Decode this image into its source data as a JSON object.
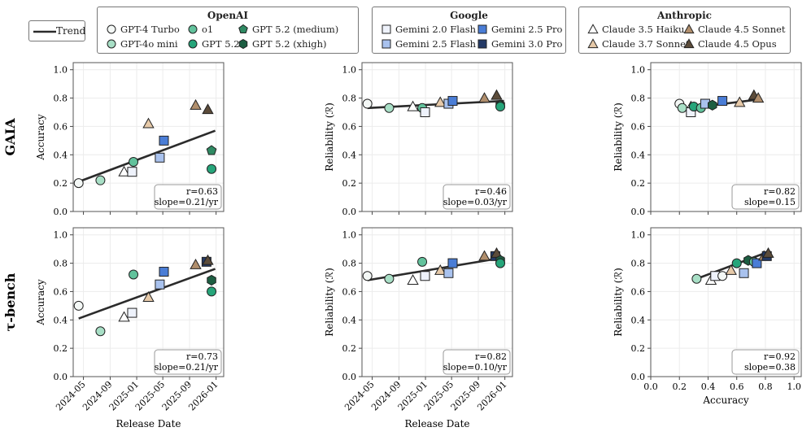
{
  "legend": {
    "trend_label": "Trend",
    "groups": [
      {
        "title": "OpenAI",
        "items": [
          {
            "label": "GPT-4 Turbo",
            "model": "gpt4turbo"
          },
          {
            "label": "o1",
            "model": "o1"
          },
          {
            "label": "GPT 5.2 (medium)",
            "model": "gpt52medium"
          },
          {
            "label": "GPT-4o mini",
            "model": "gpt4omini"
          },
          {
            "label": "GPT 5.2",
            "model": "gpt52"
          },
          {
            "label": "GPT 5.2 (xhigh)",
            "model": "gpt52xhigh"
          }
        ]
      },
      {
        "title": "Google",
        "items": [
          {
            "label": "Gemini 2.0 Flash",
            "model": "gem20flash"
          },
          {
            "label": "Gemini 2.5 Pro",
            "model": "gem25pro"
          },
          {
            "label": "Gemini 2.5 Flash",
            "model": "gem25flash"
          },
          {
            "label": "Gemini 3.0 Pro",
            "model": "gem30pro"
          }
        ]
      },
      {
        "title": "Anthropic",
        "items": [
          {
            "label": "Claude 3.5 Haiku",
            "model": "c35haiku"
          },
          {
            "label": "Claude 4.5 Sonnet",
            "model": "c45sonnet"
          },
          {
            "label": "Claude 3.7 Sonnet",
            "model": "c37sonnet"
          },
          {
            "label": "Claude 4.5 Opus",
            "model": "c45opus"
          }
        ]
      }
    ]
  },
  "models": {
    "gpt4turbo": {
      "shape": "circle",
      "color": "#f4f8f6"
    },
    "gpt4omini": {
      "shape": "circle",
      "color": "#a8dfc6"
    },
    "o1": {
      "shape": "circle",
      "color": "#62c29c"
    },
    "gpt52": {
      "shape": "circle",
      "color": "#26a57a"
    },
    "gpt52medium": {
      "shape": "pentagon",
      "color": "#2f8a63"
    },
    "gpt52xhigh": {
      "shape": "hexagon",
      "color": "#1d5e42"
    },
    "gem20flash": {
      "shape": "square",
      "color": "#eef2fb"
    },
    "gem25flash": {
      "shape": "square",
      "color": "#a9c2ee"
    },
    "gem25pro": {
      "shape": "square",
      "color": "#4a7dd6"
    },
    "gem30pro": {
      "shape": "square",
      "color": "#243a66"
    },
    "c35haiku": {
      "shape": "triangle",
      "color": "#ffffff"
    },
    "c37sonnet": {
      "shape": "triangle",
      "color": "#e6c9a8"
    },
    "c45sonnet": {
      "shape": "triangle",
      "color": "#b08e6c"
    },
    "c45opus": {
      "shape": "triangle",
      "color": "#5c4c3a"
    }
  },
  "row_labels": [
    "GAIA",
    "τ-bench"
  ],
  "chart_data": [
    {
      "id": "gaia-date-acc",
      "type": "scatter",
      "row": 0,
      "col": 0,
      "xlabel": "",
      "ylabel": "Accuracy",
      "xaxis": "date",
      "xlim": [
        "2024-03-15",
        "2026-02-05"
      ],
      "ylim": [
        0,
        1.05
      ],
      "xticks": [
        "2024-05",
        "2024-09",
        "2025-01",
        "2025-05",
        "2025-09",
        "2026-01"
      ],
      "yticks": [
        "0.0",
        "0.2",
        "0.4",
        "0.6",
        "0.8",
        "1.0"
      ],
      "show_xticklabels": false,
      "trend": {
        "x": [
          "2024-04-09",
          "2025-12-28"
        ],
        "y": [
          0.21,
          0.57
        ]
      },
      "annotation": [
        "r=0.63",
        "slope=0.21/yr"
      ],
      "points": [
        {
          "model": "gpt4turbo",
          "x": "2024-04-09",
          "y": 0.2
        },
        {
          "model": "gpt4omini",
          "x": "2024-07-18",
          "y": 0.22
        },
        {
          "model": "c35haiku",
          "x": "2024-11-04",
          "y": 0.28
        },
        {
          "model": "gem20flash",
          "x": "2024-12-11",
          "y": 0.28
        },
        {
          "model": "o1",
          "x": "2024-12-17",
          "y": 0.35
        },
        {
          "model": "c37sonnet",
          "x": "2025-02-24",
          "y": 0.62
        },
        {
          "model": "gem25flash",
          "x": "2025-04-17",
          "y": 0.38
        },
        {
          "model": "gem25pro",
          "x": "2025-05-06",
          "y": 0.5
        },
        {
          "model": "c45sonnet",
          "x": "2025-09-29",
          "y": 0.75
        },
        {
          "model": "c45opus",
          "x": "2025-11-24",
          "y": 0.72
        },
        {
          "model": "gpt52medium",
          "x": "2025-12-11",
          "y": 0.43
        },
        {
          "model": "gpt52",
          "x": "2025-12-11",
          "y": 0.3
        }
      ]
    },
    {
      "id": "gaia-date-rel",
      "type": "scatter",
      "row": 0,
      "col": 1,
      "xlabel": "",
      "ylabel": "Reliability (ℛ)",
      "xaxis": "date",
      "xlim": [
        "2024-03-15",
        "2026-02-05"
      ],
      "ylim": [
        0,
        1.05
      ],
      "xticks": [
        "2024-05",
        "2024-09",
        "2025-01",
        "2025-05",
        "2025-09",
        "2026-01"
      ],
      "yticks": [
        "0.0",
        "0.2",
        "0.4",
        "0.6",
        "0.8",
        "1.0"
      ],
      "show_xticklabels": false,
      "trend": {
        "x": [
          "2024-04-09",
          "2025-12-28"
        ],
        "y": [
          0.73,
          0.78
        ]
      },
      "annotation": [
        "r=0.46",
        "slope=0.03/yr"
      ],
      "points": [
        {
          "model": "gpt4turbo",
          "x": "2024-04-09",
          "y": 0.76
        },
        {
          "model": "gpt4omini",
          "x": "2024-07-18",
          "y": 0.73
        },
        {
          "model": "c35haiku",
          "x": "2024-11-04",
          "y": 0.74
        },
        {
          "model": "o1",
          "x": "2024-12-17",
          "y": 0.73
        },
        {
          "model": "gem20flash",
          "x": "2024-12-30",
          "y": 0.7
        },
        {
          "model": "c37sonnet",
          "x": "2025-03-10",
          "y": 0.77
        },
        {
          "model": "gem25flash",
          "x": "2025-04-17",
          "y": 0.76
        },
        {
          "model": "gem25pro",
          "x": "2025-05-06",
          "y": 0.78
        },
        {
          "model": "c45sonnet",
          "x": "2025-09-29",
          "y": 0.8
        },
        {
          "model": "c45opus",
          "x": "2025-11-24",
          "y": 0.82
        },
        {
          "model": "gpt52xhigh",
          "x": "2025-12-11",
          "y": 0.75
        },
        {
          "model": "gpt52",
          "x": "2025-12-11",
          "y": 0.74
        }
      ]
    },
    {
      "id": "gaia-acc-rel",
      "type": "scatter",
      "row": 0,
      "col": 2,
      "xlabel": "",
      "ylabel": "Reliability (ℛ)",
      "xaxis": "linear",
      "xlim": [
        0,
        1.05
      ],
      "ylim": [
        0,
        1.05
      ],
      "xticks": [
        0,
        0.2,
        0.4,
        0.6,
        0.8,
        1.0
      ],
      "yticks": [
        "0.0",
        "0.2",
        "0.4",
        "0.6",
        "0.8",
        "1.0"
      ],
      "show_xticklabels": false,
      "trend": {
        "x": [
          0.2,
          0.75
        ],
        "y": [
          0.72,
          0.79
        ]
      },
      "annotation": [
        "r=0.82",
        "slope=0.15"
      ],
      "points": [
        {
          "model": "gpt4turbo",
          "x": 0.2,
          "y": 0.76
        },
        {
          "model": "gpt4omini",
          "x": 0.22,
          "y": 0.73
        },
        {
          "model": "c35haiku",
          "x": 0.28,
          "y": 0.74
        },
        {
          "model": "gem20flash",
          "x": 0.28,
          "y": 0.7
        },
        {
          "model": "gpt52",
          "x": 0.3,
          "y": 0.74
        },
        {
          "model": "o1",
          "x": 0.35,
          "y": 0.73
        },
        {
          "model": "gem25flash",
          "x": 0.38,
          "y": 0.76
        },
        {
          "model": "gpt52xhigh",
          "x": 0.43,
          "y": 0.75
        },
        {
          "model": "gem25pro",
          "x": 0.5,
          "y": 0.78
        },
        {
          "model": "c37sonnet",
          "x": 0.62,
          "y": 0.77
        },
        {
          "model": "c45opus",
          "x": 0.72,
          "y": 0.82
        },
        {
          "model": "c45sonnet",
          "x": 0.75,
          "y": 0.8
        }
      ]
    },
    {
      "id": "tau-date-acc",
      "type": "scatter",
      "row": 1,
      "col": 0,
      "xlabel": "Release Date",
      "ylabel": "Accuracy",
      "xaxis": "date",
      "xlim": [
        "2024-03-15",
        "2026-02-05"
      ],
      "ylim": [
        0,
        1.05
      ],
      "xticks": [
        "2024-05",
        "2024-09",
        "2025-01",
        "2025-05",
        "2025-09",
        "2026-01"
      ],
      "yticks": [
        "0.0",
        "0.2",
        "0.4",
        "0.6",
        "0.8",
        "1.0"
      ],
      "show_xticklabels": true,
      "trend": {
        "x": [
          "2024-04-09",
          "2025-12-28"
        ],
        "y": [
          0.41,
          0.76
        ]
      },
      "annotation": [
        "r=0.73",
        "slope=0.21/yr"
      ],
      "points": [
        {
          "model": "gpt4turbo",
          "x": "2024-04-09",
          "y": 0.5
        },
        {
          "model": "gpt4omini",
          "x": "2024-07-18",
          "y": 0.32
        },
        {
          "model": "c35haiku",
          "x": "2024-11-04",
          "y": 0.42
        },
        {
          "model": "gem20flash",
          "x": "2024-12-11",
          "y": 0.45
        },
        {
          "model": "o1",
          "x": "2024-12-17",
          "y": 0.72
        },
        {
          "model": "c37sonnet",
          "x": "2025-02-24",
          "y": 0.56
        },
        {
          "model": "gem25flash",
          "x": "2025-04-17",
          "y": 0.65
        },
        {
          "model": "gem25pro",
          "x": "2025-05-06",
          "y": 0.74
        },
        {
          "model": "c45sonnet",
          "x": "2025-09-29",
          "y": 0.79
        },
        {
          "model": "gem30pro",
          "x": "2025-11-18",
          "y": 0.81
        },
        {
          "model": "c45opus",
          "x": "2025-11-24",
          "y": 0.82
        },
        {
          "model": "gpt52xhigh",
          "x": "2025-12-11",
          "y": 0.68
        },
        {
          "model": "gpt52",
          "x": "2025-12-11",
          "y": 0.6
        }
      ]
    },
    {
      "id": "tau-date-rel",
      "type": "scatter",
      "row": 1,
      "col": 1,
      "xlabel": "Release Date",
      "ylabel": "Reliability (ℛ)",
      "xaxis": "date",
      "xlim": [
        "2024-03-15",
        "2026-02-05"
      ],
      "ylim": [
        0,
        1.05
      ],
      "xticks": [
        "2024-05",
        "2024-09",
        "2025-01",
        "2025-05",
        "2025-09",
        "2026-01"
      ],
      "yticks": [
        "0.0",
        "0.2",
        "0.4",
        "0.6",
        "0.8",
        "1.0"
      ],
      "show_xticklabels": true,
      "trend": {
        "x": [
          "2024-04-09",
          "2025-12-28"
        ],
        "y": [
          0.68,
          0.84
        ]
      },
      "annotation": [
        "r=0.82",
        "slope=0.10/yr"
      ],
      "points": [
        {
          "model": "gpt4turbo",
          "x": "2024-04-09",
          "y": 0.71
        },
        {
          "model": "gpt4omini",
          "x": "2024-07-18",
          "y": 0.69
        },
        {
          "model": "c35haiku",
          "x": "2024-11-04",
          "y": 0.68
        },
        {
          "model": "o1",
          "x": "2024-12-17",
          "y": 0.81
        },
        {
          "model": "gem20flash",
          "x": "2024-12-30",
          "y": 0.71
        },
        {
          "model": "c37sonnet",
          "x": "2025-03-10",
          "y": 0.75
        },
        {
          "model": "gem25flash",
          "x": "2025-04-17",
          "y": 0.73
        },
        {
          "model": "gem25pro",
          "x": "2025-05-06",
          "y": 0.8
        },
        {
          "model": "c45sonnet",
          "x": "2025-09-29",
          "y": 0.85
        },
        {
          "model": "gem30pro",
          "x": "2025-11-18",
          "y": 0.85
        },
        {
          "model": "c45opus",
          "x": "2025-11-24",
          "y": 0.87
        },
        {
          "model": "gpt52xhigh",
          "x": "2025-12-11",
          "y": 0.82
        },
        {
          "model": "gpt52",
          "x": "2025-12-11",
          "y": 0.8
        }
      ]
    },
    {
      "id": "tau-acc-rel",
      "type": "scatter",
      "row": 1,
      "col": 2,
      "xlabel": "Accuracy",
      "ylabel": "Reliability (ℛ)",
      "xaxis": "linear",
      "xlim": [
        0,
        1.05
      ],
      "ylim": [
        0,
        1.05
      ],
      "xticks": [
        0,
        0.2,
        0.4,
        0.6,
        0.8,
        1.0
      ],
      "xticklabels": [
        "0.0",
        "0.2",
        "0.4",
        "0.6",
        "0.8",
        "1.0"
      ],
      "yticks": [
        "0.0",
        "0.2",
        "0.4",
        "0.6",
        "0.8",
        "1.0"
      ],
      "show_xticklabels": true,
      "trend": {
        "x": [
          0.32,
          0.82
        ],
        "y": [
          0.69,
          0.88
        ]
      },
      "annotation": [
        "r=0.92",
        "slope=0.38"
      ],
      "points": [
        {
          "model": "gpt4omini",
          "x": 0.32,
          "y": 0.69
        },
        {
          "model": "c35haiku",
          "x": 0.42,
          "y": 0.68
        },
        {
          "model": "gem20flash",
          "x": 0.45,
          "y": 0.71
        },
        {
          "model": "gpt4turbo",
          "x": 0.5,
          "y": 0.71
        },
        {
          "model": "c37sonnet",
          "x": 0.56,
          "y": 0.75
        },
        {
          "model": "gpt52",
          "x": 0.6,
          "y": 0.8
        },
        {
          "model": "gem25flash",
          "x": 0.65,
          "y": 0.73
        },
        {
          "model": "gpt52xhigh",
          "x": 0.68,
          "y": 0.82
        },
        {
          "model": "o1",
          "x": 0.72,
          "y": 0.81
        },
        {
          "model": "gem25pro",
          "x": 0.74,
          "y": 0.8
        },
        {
          "model": "c45sonnet",
          "x": 0.79,
          "y": 0.85
        },
        {
          "model": "gem30pro",
          "x": 0.81,
          "y": 0.85
        },
        {
          "model": "c45opus",
          "x": 0.82,
          "y": 0.87
        }
      ]
    }
  ]
}
